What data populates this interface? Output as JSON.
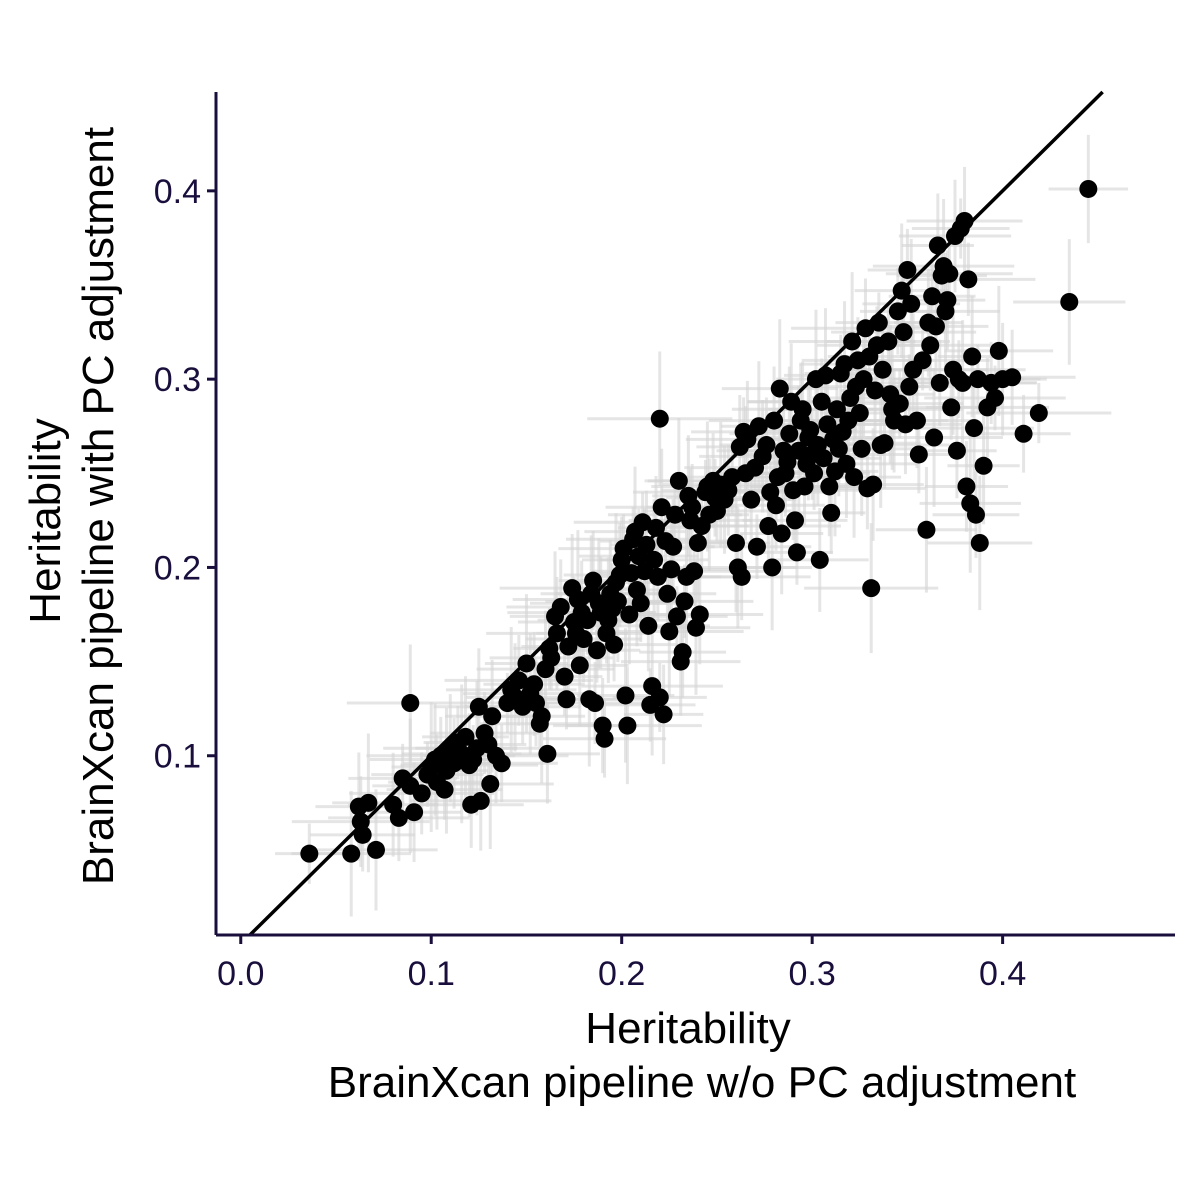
{
  "chart_data": {
    "type": "scatter",
    "title": "",
    "xlabel": [
      "Heritability",
      "BrainXcan pipeline w/o PC adjustment"
    ],
    "ylabel": [
      "Heritability",
      "BrainXcan pipeline with PC adjustment"
    ],
    "xlim": [
      -0.013,
      0.4905
    ],
    "ylim": [
      0.0048,
      0.4525
    ],
    "x_ticks": [
      {
        "value": 0.0,
        "label": "0.0"
      },
      {
        "value": 0.1,
        "label": "0.1"
      },
      {
        "value": 0.2,
        "label": "0.2"
      },
      {
        "value": 0.3,
        "label": "0.3"
      },
      {
        "value": 0.4,
        "label": "0.4"
      }
    ],
    "y_ticks": [
      {
        "value": 0.1,
        "label": "0.1"
      },
      {
        "value": 0.2,
        "label": "0.2"
      },
      {
        "value": 0.3,
        "label": "0.3"
      },
      {
        "value": 0.4,
        "label": "0.4"
      }
    ],
    "reference_line": {
      "type": "identity",
      "slope": 1,
      "intercept": 0
    },
    "grid": false,
    "legend": "none",
    "colors": {
      "points": "#000000",
      "error_bars": "#d3d3d3",
      "axes": "#1a0f3c",
      "reference_line": "#000000"
    },
    "series": [
      {
        "values": [
          [
            0.036,
            0.048
          ],
          [
            0.058,
            0.048
          ],
          [
            0.062,
            0.073
          ],
          [
            0.063,
            0.065
          ],
          [
            0.064,
            0.058
          ],
          [
            0.067,
            0.075
          ],
          [
            0.071,
            0.05
          ],
          [
            0.08,
            0.074
          ],
          [
            0.083,
            0.067
          ],
          [
            0.085,
            0.088
          ],
          [
            0.089,
            0.084
          ],
          [
            0.089,
            0.128
          ],
          [
            0.091,
            0.07
          ],
          [
            0.095,
            0.08
          ],
          [
            0.098,
            0.09
          ],
          [
            0.1,
            0.094
          ],
          [
            0.102,
            0.098
          ],
          [
            0.103,
            0.086
          ],
          [
            0.105,
            0.1
          ],
          [
            0.107,
            0.082
          ],
          [
            0.108,
            0.092
          ],
          [
            0.11,
            0.104
          ],
          [
            0.112,
            0.096
          ],
          [
            0.114,
            0.107
          ],
          [
            0.116,
            0.101
          ],
          [
            0.118,
            0.11
          ],
          [
            0.12,
            0.095
          ],
          [
            0.121,
            0.074
          ],
          [
            0.122,
            0.098
          ],
          [
            0.124,
            0.104
          ],
          [
            0.125,
            0.126
          ],
          [
            0.126,
            0.076
          ],
          [
            0.128,
            0.112
          ],
          [
            0.13,
            0.106
          ],
          [
            0.131,
            0.085
          ],
          [
            0.132,
            0.121
          ],
          [
            0.134,
            0.1
          ],
          [
            0.137,
            0.096
          ],
          [
            0.14,
            0.128
          ],
          [
            0.142,
            0.135
          ],
          [
            0.144,
            0.131
          ],
          [
            0.146,
            0.14
          ],
          [
            0.148,
            0.126
          ],
          [
            0.15,
            0.149
          ],
          [
            0.152,
            0.133
          ],
          [
            0.154,
            0.138
          ],
          [
            0.155,
            0.128
          ],
          [
            0.157,
            0.117
          ],
          [
            0.158,
            0.121
          ],
          [
            0.16,
            0.146
          ],
          [
            0.161,
            0.101
          ],
          [
            0.162,
            0.157
          ],
          [
            0.163,
            0.152
          ],
          [
            0.165,
            0.174
          ],
          [
            0.166,
            0.165
          ],
          [
            0.168,
            0.179
          ],
          [
            0.17,
            0.142
          ],
          [
            0.171,
            0.13
          ],
          [
            0.172,
            0.158
          ],
          [
            0.174,
            0.189
          ],
          [
            0.175,
            0.171
          ],
          [
            0.176,
            0.165
          ],
          [
            0.177,
            0.183
          ],
          [
            0.178,
            0.148
          ],
          [
            0.179,
            0.176
          ],
          [
            0.18,
            0.162
          ],
          [
            0.182,
            0.172
          ],
          [
            0.183,
            0.13
          ],
          [
            0.184,
            0.186
          ],
          [
            0.185,
            0.193
          ],
          [
            0.186,
            0.128
          ],
          [
            0.187,
            0.156
          ],
          [
            0.188,
            0.181
          ],
          [
            0.189,
            0.176
          ],
          [
            0.19,
            0.116
          ],
          [
            0.191,
            0.109
          ],
          [
            0.192,
            0.165
          ],
          [
            0.193,
            0.172
          ],
          [
            0.194,
            0.186
          ],
          [
            0.195,
            0.178
          ],
          [
            0.196,
            0.159
          ],
          [
            0.197,
            0.192
          ],
          [
            0.198,
            0.182
          ],
          [
            0.199,
            0.196
          ],
          [
            0.2,
            0.204
          ],
          [
            0.201,
            0.21
          ],
          [
            0.202,
            0.132
          ],
          [
            0.203,
            0.116
          ],
          [
            0.204,
            0.175
          ],
          [
            0.205,
            0.197
          ],
          [
            0.206,
            0.215
          ],
          [
            0.207,
            0.219
          ],
          [
            0.208,
            0.188
          ],
          [
            0.209,
            0.206
          ],
          [
            0.21,
            0.181
          ],
          [
            0.211,
            0.224
          ],
          [
            0.212,
            0.198
          ],
          [
            0.213,
            0.212
          ],
          [
            0.214,
            0.169
          ],
          [
            0.215,
            0.127
          ],
          [
            0.216,
            0.137
          ],
          [
            0.217,
            0.204
          ],
          [
            0.218,
            0.221
          ],
          [
            0.219,
            0.195
          ],
          [
            0.22,
            0.131
          ],
          [
            0.22,
            0.279
          ],
          [
            0.221,
            0.232
          ],
          [
            0.222,
            0.122
          ],
          [
            0.223,
            0.214
          ],
          [
            0.224,
            0.186
          ],
          [
            0.225,
            0.166
          ],
          [
            0.226,
            0.199
          ],
          [
            0.227,
            0.211
          ],
          [
            0.228,
            0.228
          ],
          [
            0.229,
            0.174
          ],
          [
            0.23,
            0.246
          ],
          [
            0.231,
            0.15
          ],
          [
            0.232,
            0.155
          ],
          [
            0.233,
            0.182
          ],
          [
            0.234,
            0.195
          ],
          [
            0.235,
            0.238
          ],
          [
            0.236,
            0.225
          ],
          [
            0.237,
            0.232
          ],
          [
            0.238,
            0.198
          ],
          [
            0.239,
            0.168
          ],
          [
            0.24,
            0.213
          ],
          [
            0.241,
            0.175
          ],
          [
            0.242,
            0.222
          ],
          [
            0.244,
            0.24
          ],
          [
            0.245,
            0.243
          ],
          [
            0.246,
            0.228
          ],
          [
            0.248,
            0.246
          ],
          [
            0.249,
            0.237
          ],
          [
            0.25,
            0.23
          ],
          [
            0.252,
            0.244
          ],
          [
            0.254,
            0.236
          ],
          [
            0.256,
            0.241
          ],
          [
            0.258,
            0.248
          ],
          [
            0.26,
            0.213
          ],
          [
            0.261,
            0.2
          ],
          [
            0.262,
            0.264
          ],
          [
            0.263,
            0.195
          ],
          [
            0.264,
            0.272
          ],
          [
            0.265,
            0.25
          ],
          [
            0.266,
            0.268
          ],
          [
            0.268,
            0.236
          ],
          [
            0.27,
            0.253
          ],
          [
            0.271,
            0.211
          ],
          [
            0.272,
            0.275
          ],
          [
            0.274,
            0.259
          ],
          [
            0.276,
            0.265
          ],
          [
            0.277,
            0.222
          ],
          [
            0.278,
            0.24
          ],
          [
            0.279,
            0.2
          ],
          [
            0.28,
            0.278
          ],
          [
            0.281,
            0.233
          ],
          [
            0.282,
            0.248
          ],
          [
            0.283,
            0.295
          ],
          [
            0.284,
            0.218
          ],
          [
            0.285,
            0.262
          ],
          [
            0.286,
            0.25
          ],
          [
            0.287,
            0.256
          ],
          [
            0.288,
            0.271
          ],
          [
            0.289,
            0.288
          ],
          [
            0.29,
            0.241
          ],
          [
            0.291,
            0.225
          ],
          [
            0.292,
            0.208
          ],
          [
            0.293,
            0.262
          ],
          [
            0.294,
            0.278
          ],
          [
            0.295,
            0.284
          ],
          [
            0.296,
            0.243
          ],
          [
            0.297,
            0.255
          ],
          [
            0.298,
            0.269
          ],
          [
            0.299,
            0.273
          ],
          [
            0.3,
            0.26
          ],
          [
            0.301,
            0.25
          ],
          [
            0.302,
            0.3
          ],
          [
            0.303,
            0.265
          ],
          [
            0.304,
            0.204
          ],
          [
            0.305,
            0.288
          ],
          [
            0.306,
            0.258
          ],
          [
            0.307,
            0.302
          ],
          [
            0.308,
            0.276
          ],
          [
            0.309,
            0.243
          ],
          [
            0.31,
            0.229
          ],
          [
            0.311,
            0.268
          ],
          [
            0.312,
            0.251
          ],
          [
            0.313,
            0.284
          ],
          [
            0.314,
            0.263
          ],
          [
            0.315,
            0.303
          ],
          [
            0.316,
            0.272
          ],
          [
            0.317,
            0.308
          ],
          [
            0.318,
            0.255
          ],
          [
            0.319,
            0.278
          ],
          [
            0.32,
            0.29
          ],
          [
            0.321,
            0.32
          ],
          [
            0.322,
            0.248
          ],
          [
            0.323,
            0.296
          ],
          [
            0.324,
            0.31
          ],
          [
            0.325,
            0.282
          ],
          [
            0.326,
            0.263
          ],
          [
            0.327,
            0.3
          ],
          [
            0.328,
            0.327
          ],
          [
            0.329,
            0.242
          ],
          [
            0.33,
            0.312
          ],
          [
            0.331,
            0.189
          ],
          [
            0.332,
            0.244
          ],
          [
            0.333,
            0.294
          ],
          [
            0.334,
            0.318
          ],
          [
            0.335,
            0.33
          ],
          [
            0.336,
            0.265
          ],
          [
            0.337,
            0.305
          ],
          [
            0.338,
            0.266
          ],
          [
            0.34,
            0.32
          ],
          [
            0.341,
            0.292
          ],
          [
            0.342,
            0.284
          ],
          [
            0.343,
            0.278
          ],
          [
            0.345,
            0.336
          ],
          [
            0.346,
            0.287
          ],
          [
            0.347,
            0.347
          ],
          [
            0.348,
            0.325
          ],
          [
            0.349,
            0.276
          ],
          [
            0.35,
            0.358
          ],
          [
            0.351,
            0.296
          ],
          [
            0.352,
            0.34
          ],
          [
            0.353,
            0.305
          ],
          [
            0.355,
            0.278
          ],
          [
            0.356,
            0.26
          ],
          [
            0.358,
            0.31
          ],
          [
            0.36,
            0.22
          ],
          [
            0.361,
            0.33
          ],
          [
            0.362,
            0.318
          ],
          [
            0.363,
            0.344
          ],
          [
            0.364,
            0.269
          ],
          [
            0.365,
            0.328
          ],
          [
            0.366,
            0.371
          ],
          [
            0.367,
            0.298
          ],
          [
            0.368,
            0.355
          ],
          [
            0.369,
            0.36
          ],
          [
            0.37,
            0.336
          ],
          [
            0.371,
            0.342
          ],
          [
            0.372,
            0.356
          ],
          [
            0.373,
            0.285
          ],
          [
            0.374,
            0.305
          ],
          [
            0.375,
            0.376
          ],
          [
            0.376,
            0.262
          ],
          [
            0.377,
            0.3
          ],
          [
            0.378,
            0.38
          ],
          [
            0.379,
            0.298
          ],
          [
            0.38,
            0.384
          ],
          [
            0.381,
            0.243
          ],
          [
            0.382,
            0.353
          ],
          [
            0.383,
            0.234
          ],
          [
            0.384,
            0.312
          ],
          [
            0.385,
            0.274
          ],
          [
            0.386,
            0.228
          ],
          [
            0.387,
            0.3
          ],
          [
            0.388,
            0.213
          ],
          [
            0.39,
            0.254
          ],
          [
            0.392,
            0.285
          ],
          [
            0.394,
            0.298
          ],
          [
            0.396,
            0.29
          ],
          [
            0.398,
            0.315
          ],
          [
            0.4,
            0.3
          ],
          [
            0.405,
            0.301
          ],
          [
            0.411,
            0.271
          ],
          [
            0.419,
            0.282
          ],
          [
            0.435,
            0.341
          ],
          [
            0.445,
            0.401
          ]
        ]
      }
    ]
  }
}
